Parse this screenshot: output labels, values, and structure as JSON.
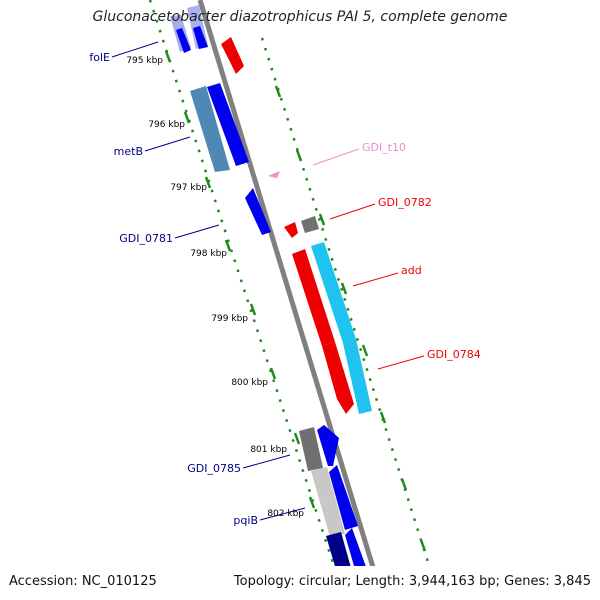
{
  "title": "Gluconacetobacter diazotrophicus PAI 5, complete genome",
  "footer": {
    "accession": "Accession: NC_010125",
    "topology": "Topology: circular; Length: 3,944,163 bp; Genes: 3,845"
  },
  "ticks": [
    "795 kbp",
    "796 kbp",
    "797 kbp",
    "798 kbp",
    "799 kbp",
    "800 kbp",
    "801 kbp",
    "802 kbp"
  ],
  "gene_labels": {
    "folE": "folE",
    "metB": "metB",
    "GDI_0781": "GDI_0781",
    "GDI_0785": "GDI_0785",
    "pqiB": "pqiB",
    "GDI_t10": "GDI_t10",
    "GDI_0782": "GDI_0782",
    "add": "add",
    "GDI_0784": "GDI_0784"
  },
  "colors": {
    "forward": "#0000ee",
    "reverse": "#ee0000",
    "steel": "#4f87b5",
    "cyan": "#1ec3f0",
    "gray": "#707070",
    "light_gray": "#c8c8c8",
    "navy": "#000088",
    "trna": "#f08cc8",
    "dots": "#1e8a1e",
    "backbone": "#808080"
  }
}
